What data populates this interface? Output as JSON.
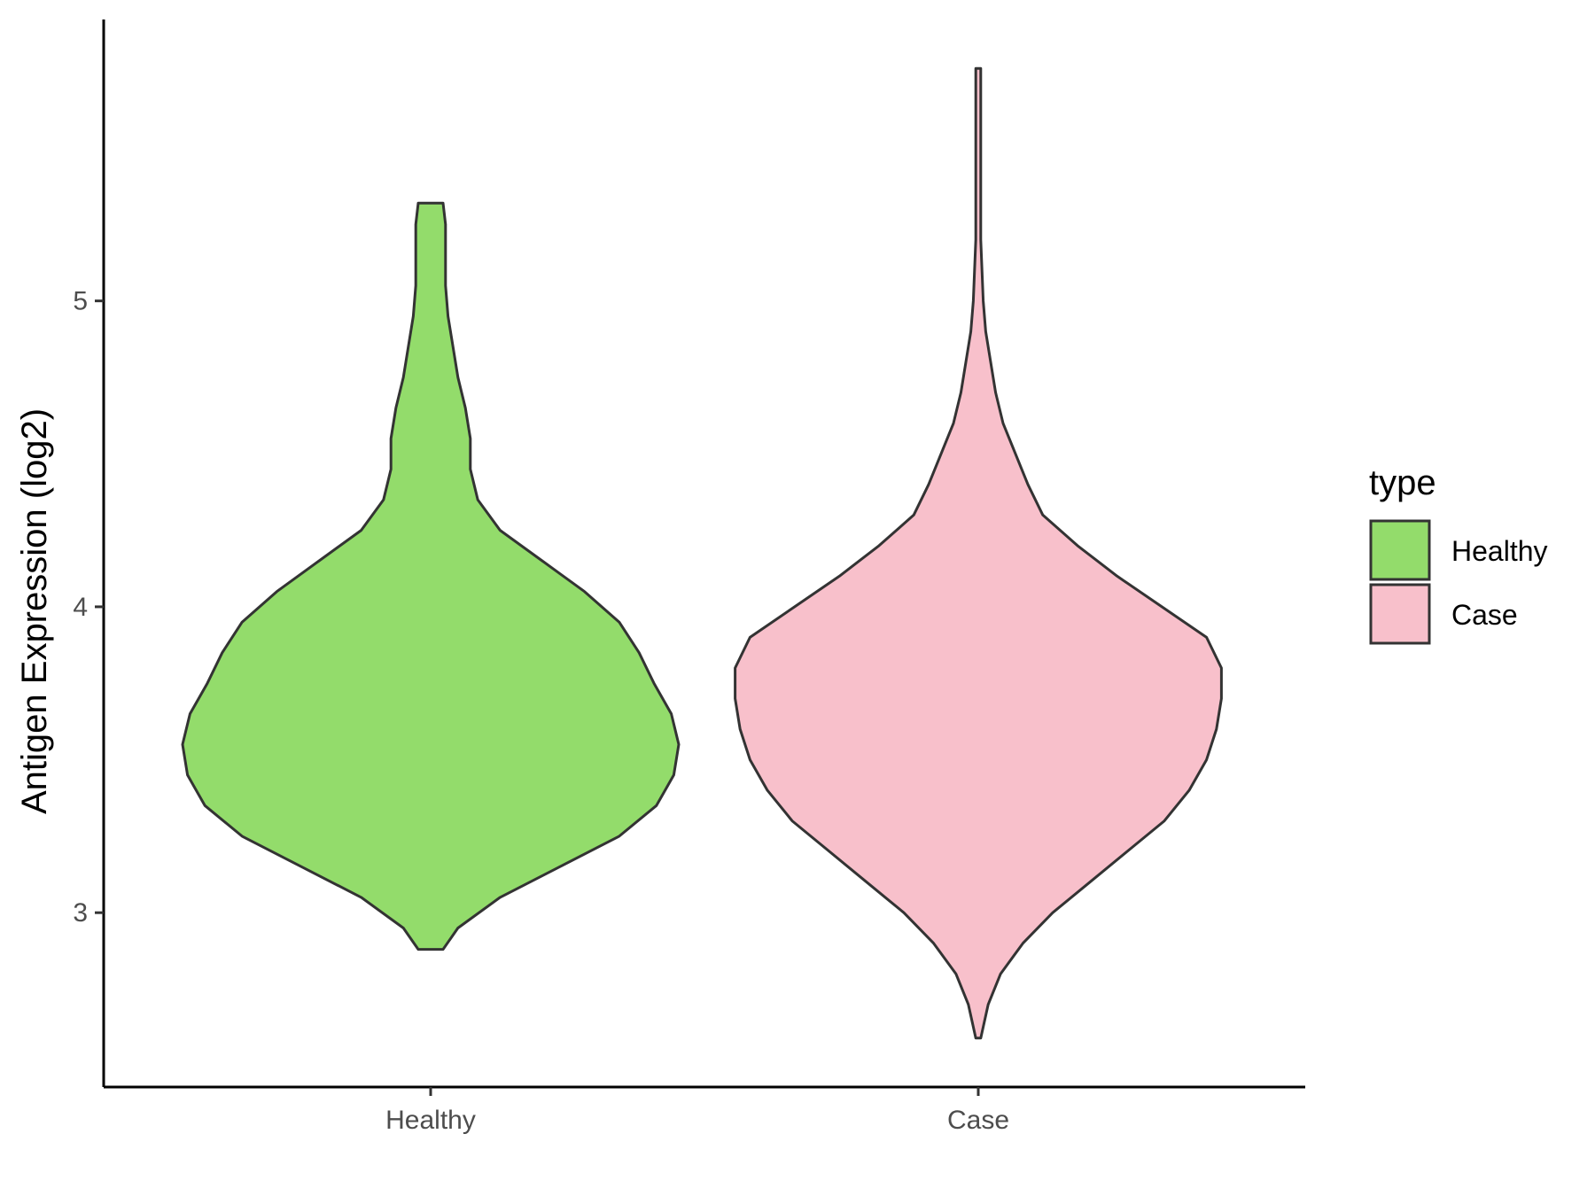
{
  "chart_data": {
    "type": "violin",
    "title": "",
    "xlabel": "",
    "ylabel": "Antigen Expression (log2)",
    "ylim": [
      2.43,
      5.92
    ],
    "yticks": [
      3,
      4,
      5
    ],
    "grid": false,
    "categories": [
      "Healthy",
      "Case"
    ],
    "legend": {
      "title": "type",
      "position": "right",
      "entries": [
        {
          "label": "Healthy",
          "color": "#93DC6B"
        },
        {
          "label": "Case",
          "color": "#F8C0CB"
        }
      ]
    },
    "series": [
      {
        "name": "Healthy",
        "color": "#93DC6B",
        "min": 2.88,
        "max": 5.32,
        "profile": [
          [
            2.88,
            0.05
          ],
          [
            2.95,
            0.11
          ],
          [
            3.05,
            0.28
          ],
          [
            3.15,
            0.52
          ],
          [
            3.25,
            0.76
          ],
          [
            3.35,
            0.91
          ],
          [
            3.45,
            0.98
          ],
          [
            3.55,
            1.0
          ],
          [
            3.65,
            0.97
          ],
          [
            3.75,
            0.9
          ],
          [
            3.85,
            0.84
          ],
          [
            3.95,
            0.76
          ],
          [
            4.05,
            0.62
          ],
          [
            4.15,
            0.45
          ],
          [
            4.25,
            0.28
          ],
          [
            4.35,
            0.19
          ],
          [
            4.45,
            0.16
          ],
          [
            4.55,
            0.16
          ],
          [
            4.65,
            0.14
          ],
          [
            4.75,
            0.11
          ],
          [
            4.85,
            0.09
          ],
          [
            4.95,
            0.07
          ],
          [
            5.05,
            0.06
          ],
          [
            5.15,
            0.06
          ],
          [
            5.25,
            0.06
          ],
          [
            5.32,
            0.05
          ]
        ]
      },
      {
        "name": "Case",
        "color": "#F8C0CB",
        "min": 2.59,
        "max": 5.76,
        "profile": [
          [
            2.59,
            0.01
          ],
          [
            2.7,
            0.04
          ],
          [
            2.8,
            0.09
          ],
          [
            2.9,
            0.18
          ],
          [
            3.0,
            0.3
          ],
          [
            3.1,
            0.45
          ],
          [
            3.2,
            0.6
          ],
          [
            3.3,
            0.75
          ],
          [
            3.4,
            0.85
          ],
          [
            3.5,
            0.92
          ],
          [
            3.6,
            0.96
          ],
          [
            3.7,
            0.98
          ],
          [
            3.8,
            0.98
          ],
          [
            3.9,
            0.92
          ],
          [
            4.0,
            0.74
          ],
          [
            4.1,
            0.56
          ],
          [
            4.2,
            0.4
          ],
          [
            4.3,
            0.26
          ],
          [
            4.4,
            0.2
          ],
          [
            4.5,
            0.15
          ],
          [
            4.6,
            0.1
          ],
          [
            4.7,
            0.07
          ],
          [
            4.8,
            0.05
          ],
          [
            4.9,
            0.03
          ],
          [
            5.0,
            0.02
          ],
          [
            5.2,
            0.01
          ],
          [
            5.4,
            0.01
          ],
          [
            5.6,
            0.01
          ],
          [
            5.76,
            0.01
          ]
        ]
      }
    ]
  }
}
